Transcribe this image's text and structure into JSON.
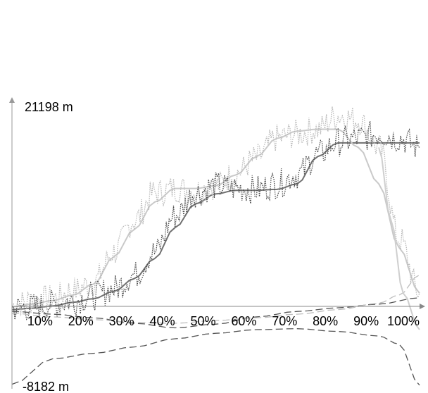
{
  "chart_data": {
    "type": "line",
    "axes": {
      "y_top_label": "21198 m",
      "y_bottom_label": "-8182 m",
      "ylim": [
        -8182,
        21198
      ],
      "x_tick_labels": [
        "10%",
        "20%",
        "30%",
        "40%",
        "50%",
        "60%",
        "70%",
        "80%",
        "90%",
        "100%"
      ],
      "xlim": [
        0,
        100
      ]
    },
    "grid": false,
    "legend": "none",
    "series": [
      {
        "style": "dark-solid-smoothed",
        "color": "#707070",
        "x": [
          0,
          5,
          10,
          15,
          20,
          25,
          30,
          35,
          40,
          45,
          50,
          55,
          60,
          65,
          70,
          75,
          80,
          85,
          90,
          95,
          100
        ],
        "y": [
          200,
          350,
          600,
          1000,
          1400,
          2200,
          3600,
          5800,
          9200,
          11800,
          12900,
          13300,
          13300,
          13400,
          14000,
          17000,
          18500,
          18500,
          18500,
          18500,
          18500
        ]
      },
      {
        "style": "light-solid-smoothed",
        "color": "#c9c9c9",
        "x": [
          0,
          5,
          10,
          15,
          20,
          25,
          30,
          35,
          40,
          45,
          50,
          55,
          60,
          65,
          70,
          75,
          80,
          85,
          90,
          95,
          100
        ],
        "y": [
          500,
          800,
          1200,
          1800,
          3000,
          6000,
          9000,
          12000,
          13500,
          13500,
          13800,
          15000,
          17000,
          19000,
          19800,
          20000,
          20000,
          18000,
          14000,
          7000,
          2000
        ]
      },
      {
        "style": "light-dotted-noisy",
        "color": "#b8b8b8",
        "x": [
          0,
          5,
          10,
          15,
          20,
          25,
          30,
          35,
          40,
          45,
          50,
          55,
          60,
          65,
          70,
          75,
          80,
          85,
          90,
          95,
          100
        ],
        "y": [
          600,
          1200,
          1400,
          2300,
          3200,
          6500,
          10000,
          13000,
          13500,
          13200,
          13800,
          15200,
          16800,
          19000,
          19500,
          20000,
          21500,
          21000,
          18000,
          8000,
          2000
        ]
      },
      {
        "style": "dark-dotted-noisy",
        "color": "#4a4a4a",
        "x": [
          0,
          5,
          10,
          15,
          20,
          25,
          30,
          35,
          40,
          45,
          50,
          55,
          60,
          65,
          70,
          75,
          80,
          85,
          90,
          95,
          100
        ],
        "y": [
          300,
          500,
          800,
          1200,
          1700,
          2500,
          4000,
          6500,
          10500,
          13000,
          13800,
          13500,
          13400,
          14000,
          15000,
          17200,
          18600,
          19000,
          19500,
          19000,
          18000
        ]
      },
      {
        "style": "dark-dashed",
        "color": "#555555",
        "x": [
          0,
          10,
          20,
          30,
          40,
          50,
          60,
          70,
          80,
          90,
          95,
          100
        ],
        "y": [
          -8000,
          -5200,
          -4600,
          -3900,
          -3000,
          -2400,
          -2000,
          -1900,
          -2200,
          -2700,
          -3600,
          -8100
        ]
      },
      {
        "style": "dark-dashed",
        "color": "#555555",
        "x": [
          0,
          10,
          20,
          30,
          40,
          50,
          60,
          70,
          80,
          90,
          100
        ],
        "y": [
          0,
          -300,
          -700,
          -1300,
          -1800,
          -1400,
          -600,
          0,
          400,
          800,
          1500
        ]
      },
      {
        "style": "light-dashed",
        "color": "#bdbdbd",
        "x": [
          0,
          10,
          20,
          30,
          40,
          50,
          60,
          70,
          80,
          90,
          95,
          100
        ],
        "y": [
          -200,
          -600,
          -900,
          -1200,
          -1300,
          -1000,
          -700,
          -300,
          200,
          900,
          1800,
          4000
        ]
      },
      {
        "style": "light-solid",
        "color": "#cfcfcf",
        "x": [
          90,
          93,
          96,
          100
        ],
        "y": [
          18000,
          10000,
          2000,
          -2000
        ]
      }
    ]
  }
}
